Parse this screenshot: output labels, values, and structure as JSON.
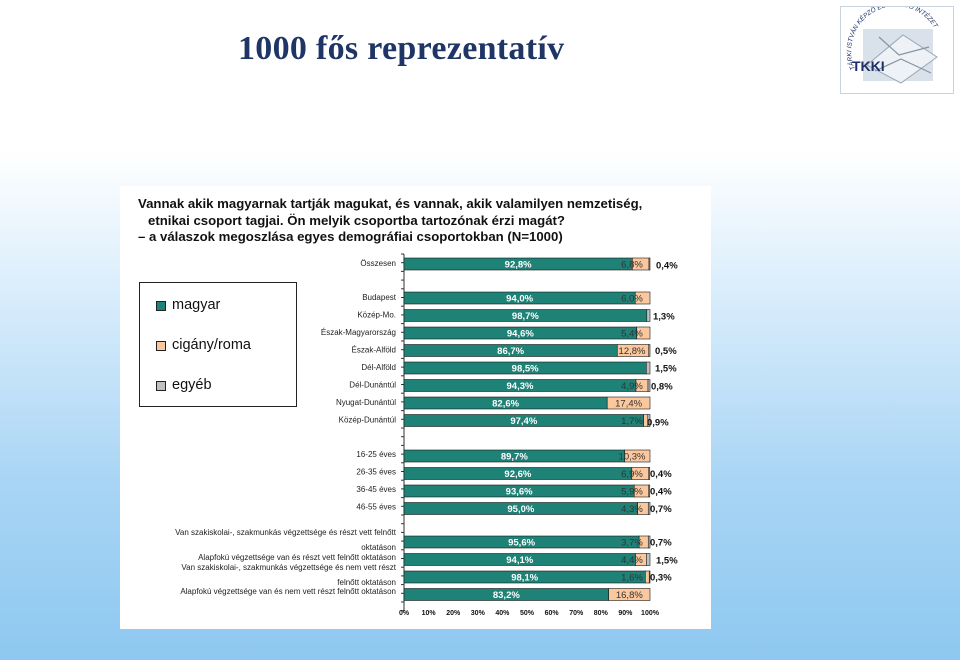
{
  "slide": {
    "title": "1000 fős reprezentatív",
    "logo": {
      "arc_text": "TÁRKI ISTVÁN KÉPZŐ ÉS KUTATÓ INTÉZET",
      "mark_text": "TKKI"
    }
  },
  "chart_data": {
    "type": "bar",
    "stacked": true,
    "question_lines": [
      "Vannak akik magyarnak tartják magukat, és vannak, akik valamilyen nemzetiség,",
      "etnikai csoport tagjai. Ön melyik csoportba tartozónak érzi magát?",
      "– a válaszok megoszlása egyes demográfiai csoportokban (N=1000)"
    ],
    "categories": [
      "Összesen",
      "Budapest",
      "Közép-Mo.",
      "Észak-Magyarország",
      "Észak-Alföld",
      "Dél-Alföld",
      "Dél-Dunántúl",
      "Nyugat-Dunántúl",
      "Közép-Dunántúl",
      "16-25 éves",
      "26-35 éves",
      "36-45 éves",
      "46-55 éves",
      "Van szakiskolai-, szakmunkás végzettsége és részt vett felnőtt oktatáson",
      "Alapfokú végzettsége van és részt vett felnőtt oktatáson",
      "Van szakiskolai-, szakmunkás végzettsége és nem vett részt felnőtt oktatáson",
      "Alapfokú végzettsége van és nem vett részt felnőtt oktatáson"
    ],
    "series": [
      {
        "name": "magyar",
        "color": "#1f8276",
        "values": [
          92.8,
          94.0,
          98.7,
          94.6,
          86.7,
          98.5,
          94.3,
          82.6,
          97.4,
          89.7,
          92.6,
          93.6,
          95.0,
          95.6,
          94.1,
          98.1,
          83.2
        ],
        "labels": [
          "92,8%",
          "94,0%",
          "98,7%",
          "94,6%",
          "86,7%",
          "98,5%",
          "94,3%",
          "82,6%",
          "97,4%",
          "89,7%",
          "92,6%",
          "93,6%",
          "95,0%",
          "95,6%",
          "94,1%",
          "98,1%",
          "83,2%"
        ]
      },
      {
        "name": "cigány/roma",
        "color": "#fbc79c",
        "values": [
          6.8,
          6.0,
          0.0,
          5.4,
          12.8,
          0.0,
          4.9,
          17.4,
          1.7,
          10.3,
          6.9,
          5.9,
          4.3,
          3.7,
          4.4,
          1.6,
          16.8
        ],
        "labels": [
          "6,8%",
          "6,0%",
          "",
          "5,4%",
          "12,8%",
          "",
          "4,9%",
          "17,4%",
          "1,7%",
          "10,3%",
          "6,9%",
          "5,9%",
          "4,3%",
          "3,7%",
          "4,4%",
          "1,6%",
          "16,8%"
        ]
      },
      {
        "name": "egyéb",
        "color": "#c0c0c0",
        "values": [
          0.4,
          0.0,
          1.3,
          0.0,
          0.5,
          1.5,
          0.8,
          0.0,
          0.9,
          0.0,
          0.4,
          0.4,
          0.7,
          0.7,
          1.5,
          0.3,
          0.0
        ],
        "labels": [
          "0,4%",
          "",
          "1,3%",
          "",
          "0,5%",
          "1,5%",
          "0,8%",
          "",
          "0,9%",
          "",
          "0,4%",
          "0,4%",
          "0,7%",
          "0,7%",
          "1,5%",
          "0,3%",
          ""
        ]
      }
    ],
    "x_ticks": [
      "0%",
      "10%",
      "20%",
      "30%",
      "40%",
      "50%",
      "60%",
      "70%",
      "80%",
      "90%",
      "100%"
    ],
    "xlim": [
      0,
      100
    ],
    "legend_position": "left",
    "grid": false
  }
}
